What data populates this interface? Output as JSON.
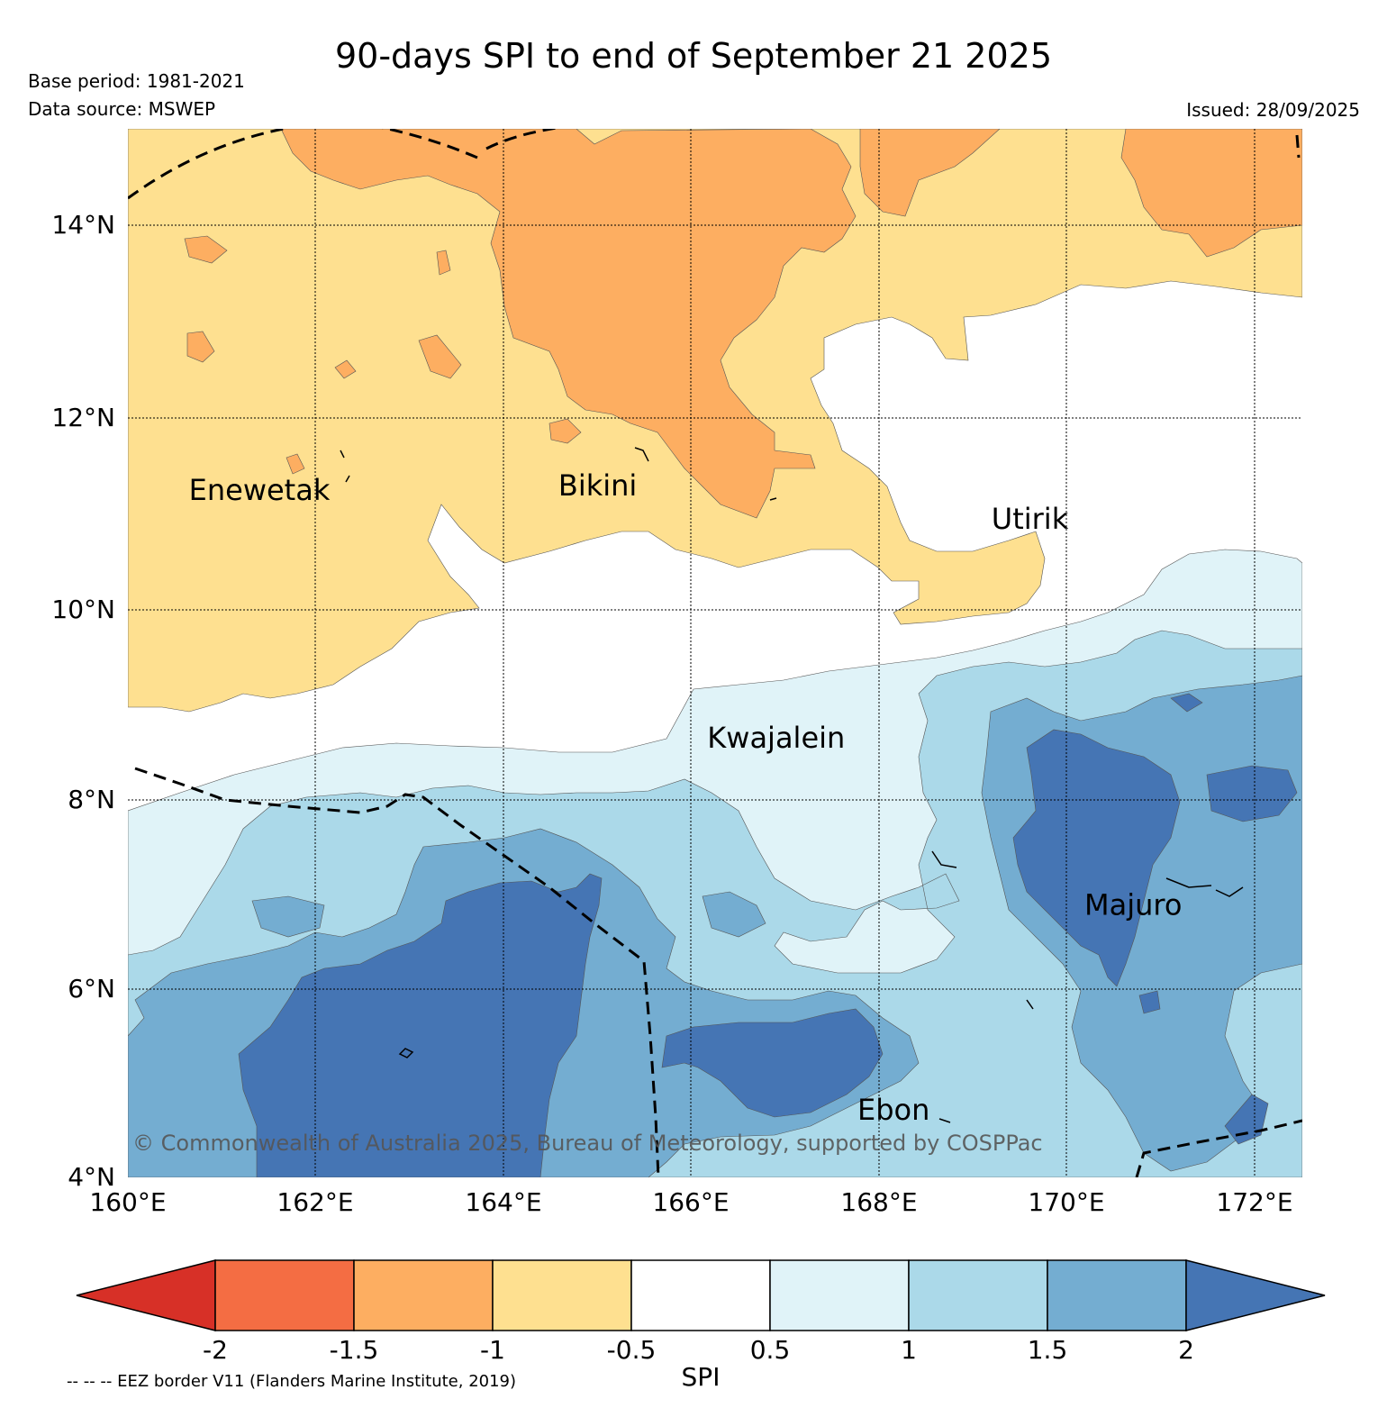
{
  "title": "90-days SPI to end of September 21 2025",
  "base_period": "Base period: 1981-2021",
  "data_source": "Data source: MSWEP",
  "issued": "Issued: 28/09/2025",
  "copyright": "© Commonwealth of Australia 2025, Bureau of Meteorology, supported by COSPPac",
  "map": {
    "lat_range": [
      4,
      15
    ],
    "lon_range": [
      160,
      172.5
    ],
    "lat_labels": [
      "14°N",
      "12°N",
      "10°N",
      "8°N",
      "6°N",
      "4°N"
    ],
    "lon_labels": [
      "160°E",
      "162°E",
      "164°E",
      "166°E",
      "168°E",
      "170°E",
      "172°E"
    ],
    "places": [
      {
        "name": "Enewetak",
        "lon": 161.4,
        "lat": 11.2
      },
      {
        "name": "Bikini",
        "lon": 165.0,
        "lat": 11.25
      },
      {
        "name": "Utirik",
        "lon": 169.6,
        "lat": 10.9
      },
      {
        "name": "Kwajalein",
        "lon": 166.9,
        "lat": 8.6
      },
      {
        "name": "Majuro",
        "lon": 170.7,
        "lat": 6.85
      },
      {
        "name": "Ebon",
        "lon": 168.15,
        "lat": 4.7
      }
    ]
  },
  "colorbar": {
    "label": "SPI",
    "ticks": [
      "-2",
      "-1.5",
      "-1",
      "-0.5",
      "0.5",
      "1",
      "1.5",
      "2"
    ],
    "colors": {
      "lt_-2": "#d73027",
      "-2_-1.5": "#f46d43",
      "-1.5_-1": "#fdae61",
      "-1_-0.5": "#fee090",
      "-0.5_0.5": "#ffffff",
      "0.5_1": "#e0f3f8",
      "1_1.5": "#abd9e9",
      "1.5_2": "#74add1",
      "gt_2": "#4575b4"
    }
  },
  "eez_note": "-- -- -- EEZ border V11 (Flanders Marine Institute, 2019)"
}
